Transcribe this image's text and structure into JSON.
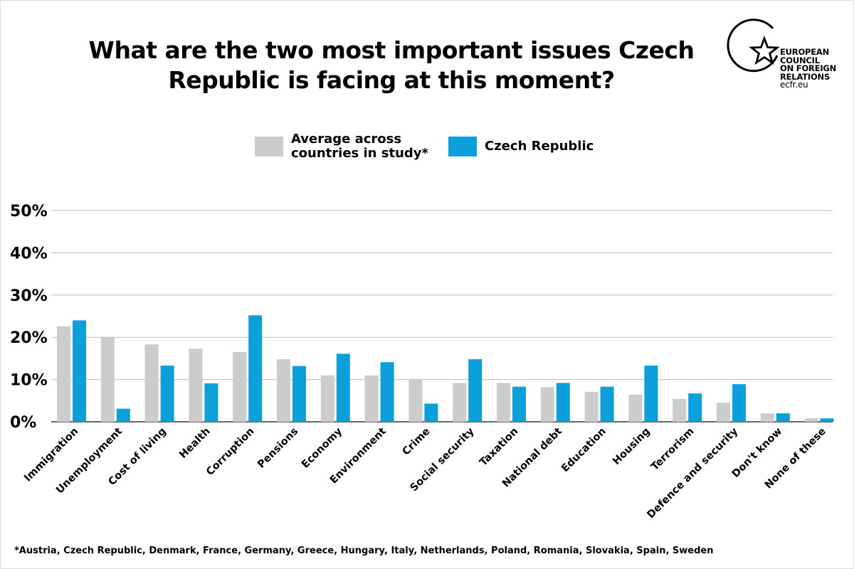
{
  "title_line1": "What are the two most important issues Czech",
  "title_line2": "Republic is facing at this moment?",
  "logo": {
    "line1": "EUROPEAN",
    "line2": "COUNCIL",
    "line3": "ON FOREIGN",
    "line4": "RELATIONS",
    "url": "ecfr.eu"
  },
  "footnote": "*Austria, Czech Republic, Denmark, France, Germany, Greece, Hungary, Italy, Netherlands, Poland, Romania, Slovakia, Spain, Sweden",
  "colors": {
    "average": "#cccccc",
    "czech": "#0b9fdc",
    "grid": "#bbbbbb",
    "axis": "#333333"
  },
  "chart_data": {
    "type": "bar",
    "ylim": [
      0,
      50
    ],
    "yticks": [
      "0%",
      "10%",
      "20%",
      "30%",
      "40%",
      "50%"
    ],
    "grid": true,
    "legend_position": "top-center",
    "categories": [
      "Immigration",
      "Unemployment",
      "Cost of living",
      "Health",
      "Corruption",
      "Pensions",
      "Economy",
      "Environment",
      "Crime",
      "Social security",
      "Taxation",
      "National debt",
      "Education",
      "Housing",
      "Terrorism",
      "Defence and security",
      "Don't know",
      "None of these"
    ],
    "series": [
      {
        "name_line1": "Average across",
        "name_line2": "countries in study*",
        "name": "Average across countries in study*",
        "values": [
          22.6,
          20,
          18.3,
          17.3,
          16.5,
          14.8,
          11,
          11,
          10,
          9.2,
          9.2,
          8.2,
          7.1,
          6.4,
          5.4,
          4.5,
          2,
          0.8
        ]
      },
      {
        "name": "Czech Republic",
        "values": [
          24,
          3.1,
          13.3,
          9.1,
          25.2,
          13.2,
          16.1,
          14.1,
          4.3,
          14.8,
          8.3,
          9.2,
          8.3,
          13.3,
          6.7,
          8.9,
          2,
          0.8
        ]
      }
    ]
  }
}
